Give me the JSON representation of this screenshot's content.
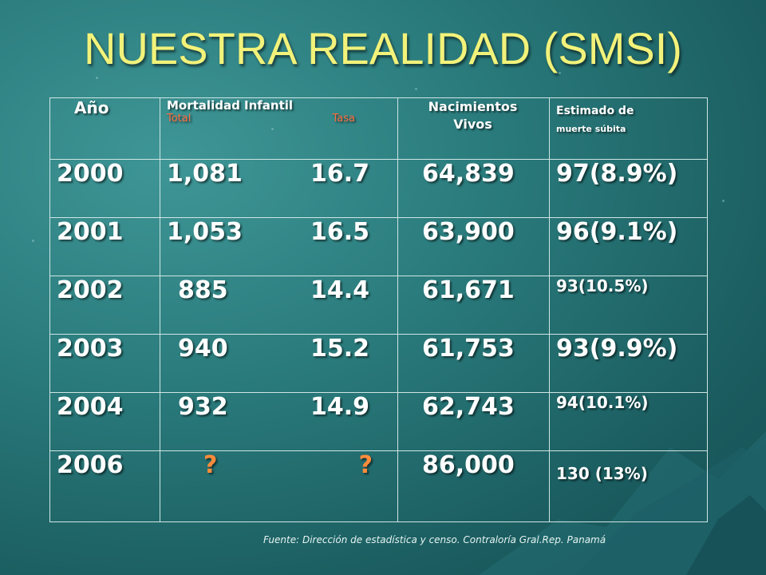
{
  "title": "NUESTRA REALIDAD (SMSI)",
  "header": {
    "anio": "Año",
    "mortalidad": "Mortalidad Infantil",
    "total": "Total",
    "tasa": "Tasa",
    "nacimientos": "Nacimientos",
    "vivos": "Vivos",
    "estimado": "Estimado de",
    "muerte": "muerte súbita"
  },
  "rows": [
    {
      "year": "2000",
      "total": "1,081",
      "tasa": "16.7",
      "nac": "64,839",
      "est": "97(8.9%)"
    },
    {
      "year": "2001",
      "total": "1,053",
      "tasa": "16.5",
      "nac": "63,900",
      "est": "96(9.1%)"
    },
    {
      "year": "2002",
      "total": "885",
      "tasa": "14.4",
      "nac": "61,671",
      "est": "93(10.5%)"
    },
    {
      "year": "2003",
      "total": "940",
      "tasa": "15.2",
      "nac": "61,753",
      "est": "93(9.9%)"
    },
    {
      "year": "2004",
      "total": "932",
      "tasa": "14.9",
      "nac": "62,743",
      "est": "94(10.1%)"
    },
    {
      "year": "2006",
      "total": "?",
      "tasa": "?",
      "nac": "86,000",
      "est": "130 (13%)"
    }
  ],
  "source": "Fuente: Dirección de estadística y censo. Contraloría Gral.Rep. Panamá",
  "colors": {
    "title": "#f2f27a",
    "accent": "#ff7a45",
    "background": "#2a7b7c"
  }
}
